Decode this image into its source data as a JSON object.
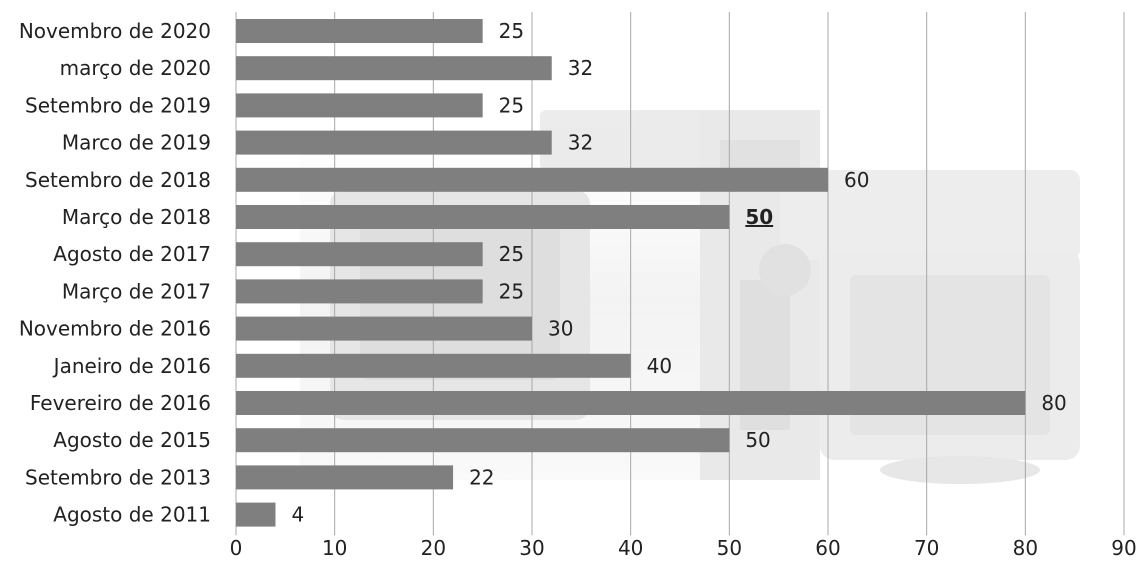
{
  "chart_data": {
    "type": "bar",
    "orientation": "horizontal",
    "title": "",
    "xlabel": "",
    "ylabel": "",
    "categories": [
      "Novembro de 2020",
      "março de 2020",
      "Setembro de 2019",
      "Marco de 2019",
      "Setembro de 2018",
      "Março de 2018",
      "Agosto de 2017",
      "Março de 2017",
      "Novembro de 2016",
      "Janeiro de 2016",
      "Fevereiro de 2016",
      "Agosto de 2015",
      "Setembro de 2013",
      "Agosto de 2011"
    ],
    "values": [
      25,
      32,
      25,
      32,
      60,
      50,
      25,
      25,
      30,
      40,
      80,
      50,
      22,
      4
    ],
    "emphasized_index": 5,
    "xlim": [
      0,
      90
    ],
    "xticks": [
      0,
      10,
      20,
      30,
      40,
      50,
      60,
      70,
      80,
      90
    ],
    "grid": true,
    "legend": "none",
    "colors": {
      "bar": "#7f7f7f",
      "grid": "#a8a8a8",
      "text": "#222222"
    }
  }
}
